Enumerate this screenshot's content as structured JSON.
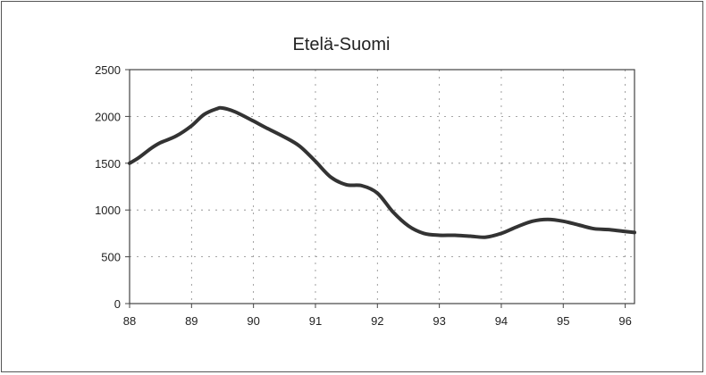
{
  "chart_data": {
    "type": "line",
    "title": "Etelä-Suomi",
    "xlabel": "",
    "ylabel": "",
    "xlim": [
      88,
      96.15
    ],
    "ylim": [
      0,
      2500
    ],
    "x_ticks": [
      "88",
      "89",
      "90",
      "91",
      "92",
      "93",
      "94",
      "95",
      "96"
    ],
    "y_ticks": [
      "0",
      "500",
      "1000",
      "1500",
      "2000",
      "2500"
    ],
    "grid": true,
    "legend": "none",
    "series": [
      {
        "color": "#333333",
        "x": [
          88.0,
          88.15,
          88.35,
          88.5,
          88.75,
          89.0,
          89.2,
          89.4,
          89.5,
          89.7,
          90.0,
          90.2,
          90.5,
          90.75,
          91.0,
          91.25,
          91.5,
          91.75,
          92.0,
          92.25,
          92.5,
          92.75,
          93.0,
          93.25,
          93.5,
          93.75,
          94.0,
          94.25,
          94.5,
          94.75,
          95.0,
          95.25,
          95.5,
          95.75,
          96.0,
          96.15
        ],
        "y": [
          1500,
          1560,
          1660,
          1720,
          1790,
          1900,
          2020,
          2080,
          2090,
          2050,
          1950,
          1880,
          1780,
          1680,
          1520,
          1350,
          1270,
          1260,
          1180,
          980,
          830,
          750,
          730,
          730,
          720,
          710,
          750,
          820,
          880,
          900,
          880,
          840,
          800,
          790,
          770,
          760
        ]
      }
    ]
  }
}
